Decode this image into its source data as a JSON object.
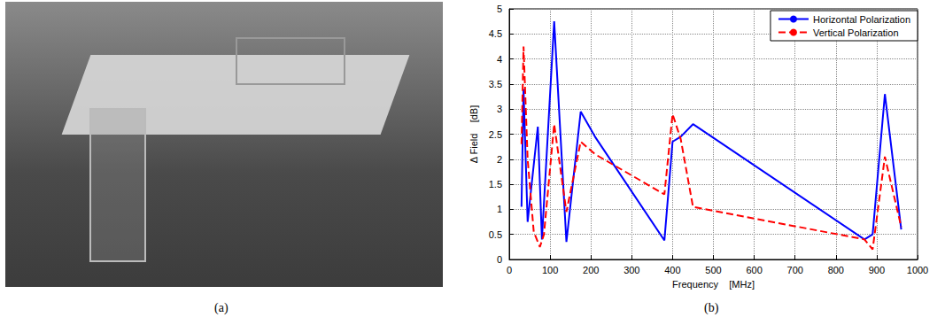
{
  "panel_labels": [
    "(a)",
    "(b)"
  ],
  "chart_data": {
    "type": "line",
    "x_label": "Frequency    [MHz]",
    "y_label": "Δ Field    [dB]",
    "series": [
      {
        "name": "Horizontal Polarization",
        "color": "#0000ff",
        "line_style": "solid",
        "marker": "none",
        "x": [
          30,
          35,
          45,
          70,
          80,
          110,
          140,
          175,
          210,
          380,
          400,
          420,
          450,
          870,
          890,
          920,
          960
        ],
        "values": [
          1.05,
          3.4,
          0.75,
          2.65,
          0.4,
          4.75,
          0.35,
          2.95,
          2.45,
          0.38,
          2.35,
          2.45,
          2.7,
          0.4,
          0.5,
          3.3,
          0.6
        ]
      },
      {
        "name": "Vertical Polarization",
        "color": "#ff0000",
        "line_style": "dashed",
        "marker": "none",
        "x": [
          30,
          35,
          45,
          60,
          75,
          85,
          110,
          140,
          175,
          210,
          380,
          400,
          420,
          450,
          870,
          890,
          920,
          960
        ],
        "values": [
          2.3,
          4.25,
          2.0,
          0.55,
          0.25,
          0.5,
          2.7,
          0.95,
          2.35,
          2.1,
          1.3,
          2.9,
          2.4,
          1.05,
          0.4,
          0.2,
          2.05,
          0.65
        ]
      }
    ],
    "xlim": [
      0,
      1000
    ],
    "xticks": [
      0,
      100,
      200,
      300,
      400,
      500,
      600,
      700,
      800,
      900,
      1000
    ],
    "ylim": [
      0,
      5
    ],
    "yticks": [
      0,
      0.5,
      1,
      1.5,
      2,
      2.5,
      3,
      3.5,
      4,
      4.5,
      5
    ],
    "grid": true,
    "legend": "upper right"
  }
}
